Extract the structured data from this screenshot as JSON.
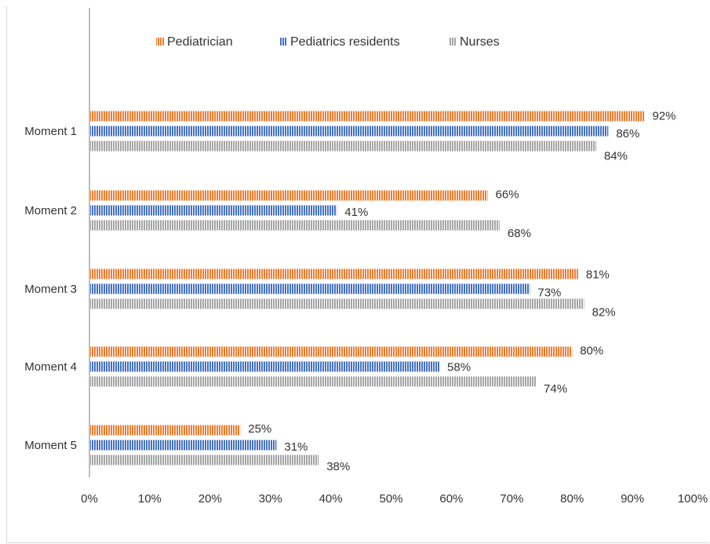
{
  "chart_data": {
    "type": "bar",
    "orientation": "horizontal",
    "categories": [
      "Moment 1",
      "Moment 2",
      "Moment 3",
      "Moment 4",
      "Moment 5"
    ],
    "series": [
      {
        "name": "Pediatrician",
        "color": "#ED7D31",
        "values": [
          92,
          66,
          81,
          80,
          25
        ],
        "labels": [
          "92%",
          "66%",
          "81%",
          "80%",
          "25%"
        ]
      },
      {
        "name": "Pediatrics residents",
        "color": "#4472C4",
        "values": [
          86,
          41,
          73,
          58,
          31
        ],
        "labels": [
          "86%",
          "41%",
          "73%",
          "58%",
          "31%"
        ]
      },
      {
        "name": "Nurses",
        "color": "#A5A5A5",
        "values": [
          84,
          68,
          82,
          74,
          38
        ],
        "labels": [
          "84%",
          "68%",
          "82%",
          "74%",
          "38%"
        ]
      }
    ],
    "x_ticks": [
      "0%",
      "10%",
      "20%",
      "30%",
      "40%",
      "50%",
      "60%",
      "70%",
      "80%",
      "90%",
      "100%"
    ],
    "xlim": [
      0,
      100
    ],
    "title": "",
    "xlabel": "",
    "ylabel": "",
    "grid": false,
    "legend_position": "top",
    "bar_pattern": "vertical-stripes"
  }
}
